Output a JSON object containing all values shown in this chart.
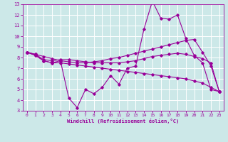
{
  "xlabel": "Windchill (Refroidissement éolien,°C)",
  "xlim": [
    -0.5,
    23.5
  ],
  "ylim": [
    3,
    13
  ],
  "xticks": [
    0,
    1,
    2,
    3,
    4,
    5,
    6,
    7,
    8,
    9,
    10,
    11,
    12,
    13,
    14,
    15,
    16,
    17,
    18,
    19,
    20,
    21,
    22,
    23
  ],
  "yticks": [
    3,
    4,
    5,
    6,
    7,
    8,
    9,
    10,
    11,
    12,
    13
  ],
  "background_color": "#cce8e8",
  "line_color": "#990099",
  "grid_color": "#ffffff",
  "lines": [
    {
      "x": [
        0,
        1,
        2,
        3,
        4,
        5,
        6,
        7,
        8,
        9,
        10,
        11,
        12,
        13,
        14,
        15,
        16,
        17,
        18,
        19,
        20,
        21,
        22,
        23
      ],
      "y": [
        8.5,
        8.2,
        7.7,
        7.5,
        7.7,
        4.2,
        3.3,
        5.0,
        4.6,
        5.2,
        6.3,
        5.5,
        7.0,
        7.2,
        10.7,
        13.3,
        11.7,
        11.6,
        12.0,
        9.8,
        8.2,
        7.5,
        5.0,
        4.8
      ]
    },
    {
      "x": [
        0,
        1,
        2,
        3,
        4,
        5,
        6,
        7,
        8,
        9,
        10,
        11,
        12,
        13,
        14,
        15,
        16,
        17,
        18,
        19,
        20,
        21,
        22,
        23
      ],
      "y": [
        8.5,
        8.3,
        8.1,
        7.9,
        7.7,
        7.6,
        7.5,
        7.5,
        7.6,
        7.7,
        7.9,
        8.0,
        8.2,
        8.4,
        8.6,
        8.8,
        9.0,
        9.2,
        9.4,
        9.6,
        9.7,
        8.5,
        7.2,
        4.8
      ]
    },
    {
      "x": [
        0,
        1,
        2,
        3,
        4,
        5,
        6,
        7,
        8,
        9,
        10,
        11,
        12,
        13,
        14,
        15,
        16,
        17,
        18,
        19,
        20,
        21,
        22,
        23
      ],
      "y": [
        8.5,
        8.3,
        7.8,
        7.7,
        7.8,
        7.8,
        7.7,
        7.6,
        7.5,
        7.5,
        7.5,
        7.5,
        7.6,
        7.7,
        7.9,
        8.1,
        8.2,
        8.3,
        8.4,
        8.3,
        8.1,
        7.9,
        7.5,
        4.8
      ]
    },
    {
      "x": [
        0,
        1,
        2,
        3,
        4,
        5,
        6,
        7,
        8,
        9,
        10,
        11,
        12,
        13,
        14,
        15,
        16,
        17,
        18,
        19,
        20,
        21,
        22,
        23
      ],
      "y": [
        8.5,
        8.2,
        7.7,
        7.5,
        7.5,
        7.4,
        7.3,
        7.2,
        7.1,
        7.0,
        6.9,
        6.8,
        6.7,
        6.6,
        6.5,
        6.4,
        6.3,
        6.2,
        6.1,
        6.0,
        5.8,
        5.6,
        5.2,
        4.8
      ]
    }
  ]
}
